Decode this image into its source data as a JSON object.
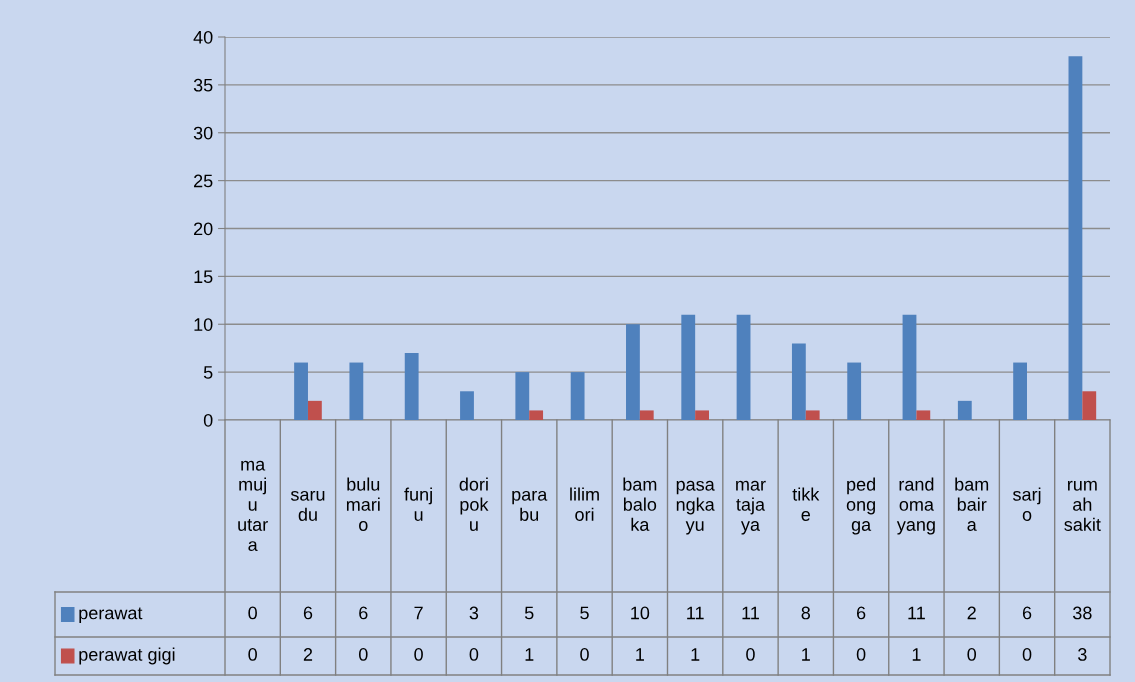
{
  "chart_data": {
    "type": "bar",
    "categories": [
      "ma\nmuj\nu\nutar\na",
      "saru\ndu",
      "bulu\nmari\no",
      "funj\nu",
      "dori\npok\nu",
      "para\nbu",
      "lilim\nori",
      "bam\nbalo\nka",
      "pasa\nngka\nyu",
      "mar\ntaja\nya",
      "tikk\ne",
      "ped\nong\nga",
      "rand\noma\nyang",
      "bam\nbair\na",
      "sarj\no",
      "rum\nah\nsakit"
    ],
    "series": [
      {
        "name": "perawat",
        "color": "#4f81bd",
        "values": [
          0,
          6,
          6,
          7,
          3,
          5,
          5,
          10,
          11,
          11,
          8,
          6,
          11,
          2,
          6,
          38
        ]
      },
      {
        "name": "perawat gigi",
        "color": "#c0504d",
        "values": [
          0,
          2,
          0,
          0,
          0,
          1,
          0,
          1,
          1,
          0,
          1,
          0,
          1,
          0,
          0,
          3
        ]
      }
    ],
    "ylim": [
      0,
      40
    ],
    "yticks": [
      0,
      5,
      10,
      15,
      20,
      25,
      30,
      35,
      40
    ],
    "grid": "y",
    "legend": "bottom",
    "data_labels": true
  }
}
